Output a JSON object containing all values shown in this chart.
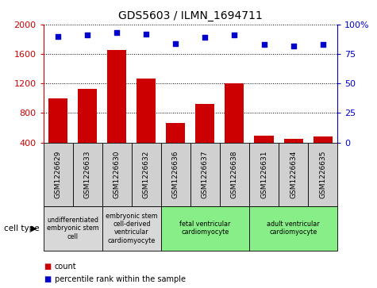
{
  "title": "GDS5603 / ILMN_1694711",
  "samples": [
    "GSM1226629",
    "GSM1226633",
    "GSM1226630",
    "GSM1226632",
    "GSM1226636",
    "GSM1226637",
    "GSM1226638",
    "GSM1226631",
    "GSM1226634",
    "GSM1226635"
  ],
  "counts": [
    1000,
    1130,
    1650,
    1270,
    670,
    920,
    1200,
    490,
    455,
    480
  ],
  "percentiles": [
    90,
    91,
    93,
    92,
    84,
    89,
    91,
    83,
    82,
    83
  ],
  "bar_color": "#cc0000",
  "dot_color": "#0000cc",
  "ylim_left": [
    400,
    2000
  ],
  "ylim_right": [
    0,
    100
  ],
  "yticks_left": [
    400,
    800,
    1200,
    1600,
    2000
  ],
  "yticks_right": [
    0,
    25,
    50,
    75,
    100
  ],
  "cell_type_groups": [
    {
      "label": "undifferentiated\nembryonic stem\ncell",
      "span": [
        0,
        2
      ],
      "color": "#d8d8d8"
    },
    {
      "label": "embryonic stem\ncell-derived\nventricular\ncardiomyocyte",
      "span": [
        2,
        4
      ],
      "color": "#d8d8d8"
    },
    {
      "label": "fetal ventricular\ncardiomyocyte",
      "span": [
        4,
        7
      ],
      "color": "#88ee88"
    },
    {
      "label": "adult ventricular\ncardiomyocyte",
      "span": [
        7,
        10
      ],
      "color": "#88ee88"
    }
  ],
  "tick_color_left": "#cc0000",
  "tick_color_right": "#0000cc",
  "cell_type_label": "cell type",
  "legend_count_label": "count",
  "legend_percentile_label": "percentile rank within the sample",
  "sample_box_color": "#d0d0d0",
  "grid_color": "#000000"
}
